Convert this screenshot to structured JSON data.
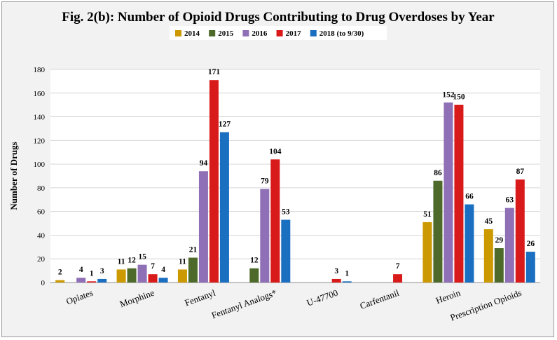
{
  "chart_data": {
    "type": "bar",
    "title": "Fig. 2(b): Number of  Opioid Drugs Contributing to Drug Overdoses by Year",
    "ylabel": "Number of Drugs",
    "xlabel": "",
    "ylim": [
      0,
      180
    ],
    "yticks": [
      0,
      20,
      40,
      60,
      80,
      100,
      120,
      140,
      160,
      180
    ],
    "grid": true,
    "legend_position": "top",
    "categories": [
      "Opiates",
      "Morphine",
      "Fentanyl",
      "Fentanyl Analogs*",
      "U-47700",
      "Carfentanil",
      "Heroin",
      "Prescription Opioids"
    ],
    "series": [
      {
        "name": "2014",
        "color": "#cc9900",
        "values": [
          2,
          11,
          11,
          0,
          0,
          0,
          51,
          45
        ],
        "labels": [
          "2",
          "11",
          "11",
          "",
          "",
          "",
          "51",
          "45"
        ]
      },
      {
        "name": "2015",
        "color": "#4e6a2a",
        "values": [
          0,
          12,
          21,
          12,
          0,
          0,
          86,
          29
        ],
        "labels": [
          "",
          "12",
          "21",
          "12",
          "",
          "",
          "86",
          "29"
        ]
      },
      {
        "name": "2016",
        "color": "#8f6fb5",
        "values": [
          4,
          15,
          94,
          79,
          0,
          0,
          152,
          63
        ],
        "labels": [
          "4",
          "15",
          "94",
          "79",
          "",
          "",
          "152",
          "63"
        ]
      },
      {
        "name": "2017",
        "color": "#d91a1a",
        "values": [
          1,
          7,
          171,
          104,
          3,
          7,
          150,
          87
        ],
        "labels": [
          "1",
          "7",
          "171",
          "104",
          "3",
          "7",
          "150",
          "87"
        ]
      },
      {
        "name": "2018 (to 9/30)",
        "color": "#1a6fc0",
        "values": [
          3,
          4,
          127,
          53,
          1,
          0,
          66,
          26
        ],
        "labels": [
          "3",
          "4",
          "127",
          "53",
          "1",
          "",
          "66",
          "26"
        ]
      }
    ]
  }
}
